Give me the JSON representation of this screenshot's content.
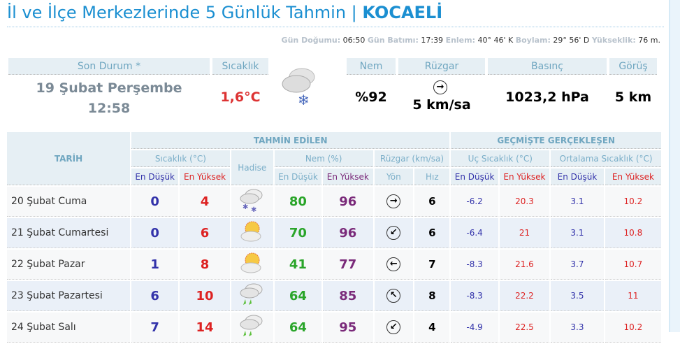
{
  "title": {
    "text": "İl ve İlçe Merkezlerinde 5 Günlük Tahmin | ",
    "city": "KOCAELİ"
  },
  "info": [
    {
      "k": "Gün Doğumu:",
      "v": "06:50"
    },
    {
      "k": "Gün Batımı:",
      "v": "17:39"
    },
    {
      "k": "Enlem:",
      "v": "40° 46' K"
    },
    {
      "k": "Boylam:",
      "v": "29° 56' D"
    },
    {
      "k": "Yükseklik:",
      "v": "76 m."
    }
  ],
  "current": {
    "son_durum_label": "Son Durum *",
    "sicaklik_label": "Sıcaklık",
    "nem_label": "Nem",
    "ruzgar_label": "Rüzgar",
    "basinc_label": "Basınç",
    "gorus_label": "Görüş",
    "date": "19 Şubat Perşembe",
    "time": "12:58",
    "temp": "1,6°C",
    "icon": "cloud-snow-icon",
    "humidity": "%92",
    "wind_dir": "→",
    "wind": "5 km/sa",
    "pressure": "1023,2 hPa",
    "visibility": "5 km"
  },
  "table": {
    "tarih": "TARİH",
    "forecast": "TAHMİN EDİLEN",
    "past": "GEÇMİŞTE GERÇEKLEŞEN",
    "sicaklik": "Sıcaklık (°C)",
    "hadise": "Hadise",
    "nem": "Nem (%)",
    "ruzgar": "Rüzgar (km/sa)",
    "uc": "Uç Sıcaklık (°C)",
    "ort": "Ortalama Sıcaklık (°C)",
    "min": "En Düşük",
    "max": "En Yüksek",
    "yon": "Yön",
    "hiz": "Hız",
    "rows": [
      {
        "date": "20 Şubat Cuma",
        "min": "0",
        "max": "4",
        "icon": "snow",
        "nmin": "80",
        "nmax": "96",
        "dir": "→",
        "speed": "6",
        "umin": "-6.2",
        "umax": "20.3",
        "omin": "3.1",
        "omax": "10.2"
      },
      {
        "date": "21 Şubat Cumartesi",
        "min": "0",
        "max": "6",
        "icon": "partly-cloudy",
        "nmin": "70",
        "nmax": "96",
        "dir": "↙",
        "speed": "6",
        "umin": "-6.4",
        "umax": "21",
        "omin": "3.1",
        "omax": "10.8"
      },
      {
        "date": "22 Şubat Pazar",
        "min": "1",
        "max": "8",
        "icon": "partly-cloudy",
        "nmin": "41",
        "nmax": "77",
        "dir": "←",
        "speed": "7",
        "umin": "-8.3",
        "umax": "21.6",
        "omin": "3.7",
        "omax": "10.7"
      },
      {
        "date": "23 Şubat Pazartesi",
        "min": "6",
        "max": "10",
        "icon": "rain",
        "nmin": "64",
        "nmax": "85",
        "dir": "↖",
        "speed": "8",
        "umin": "-8.3",
        "umax": "22.2",
        "omin": "3.5",
        "omax": "11"
      },
      {
        "date": "24 Şubat Salı",
        "min": "7",
        "max": "14",
        "icon": "rain",
        "nmin": "64",
        "nmax": "95",
        "dir": "↙",
        "speed": "4",
        "umin": "-4.9",
        "umax": "22.5",
        "omin": "3.3",
        "omax": "10.2"
      }
    ]
  }
}
